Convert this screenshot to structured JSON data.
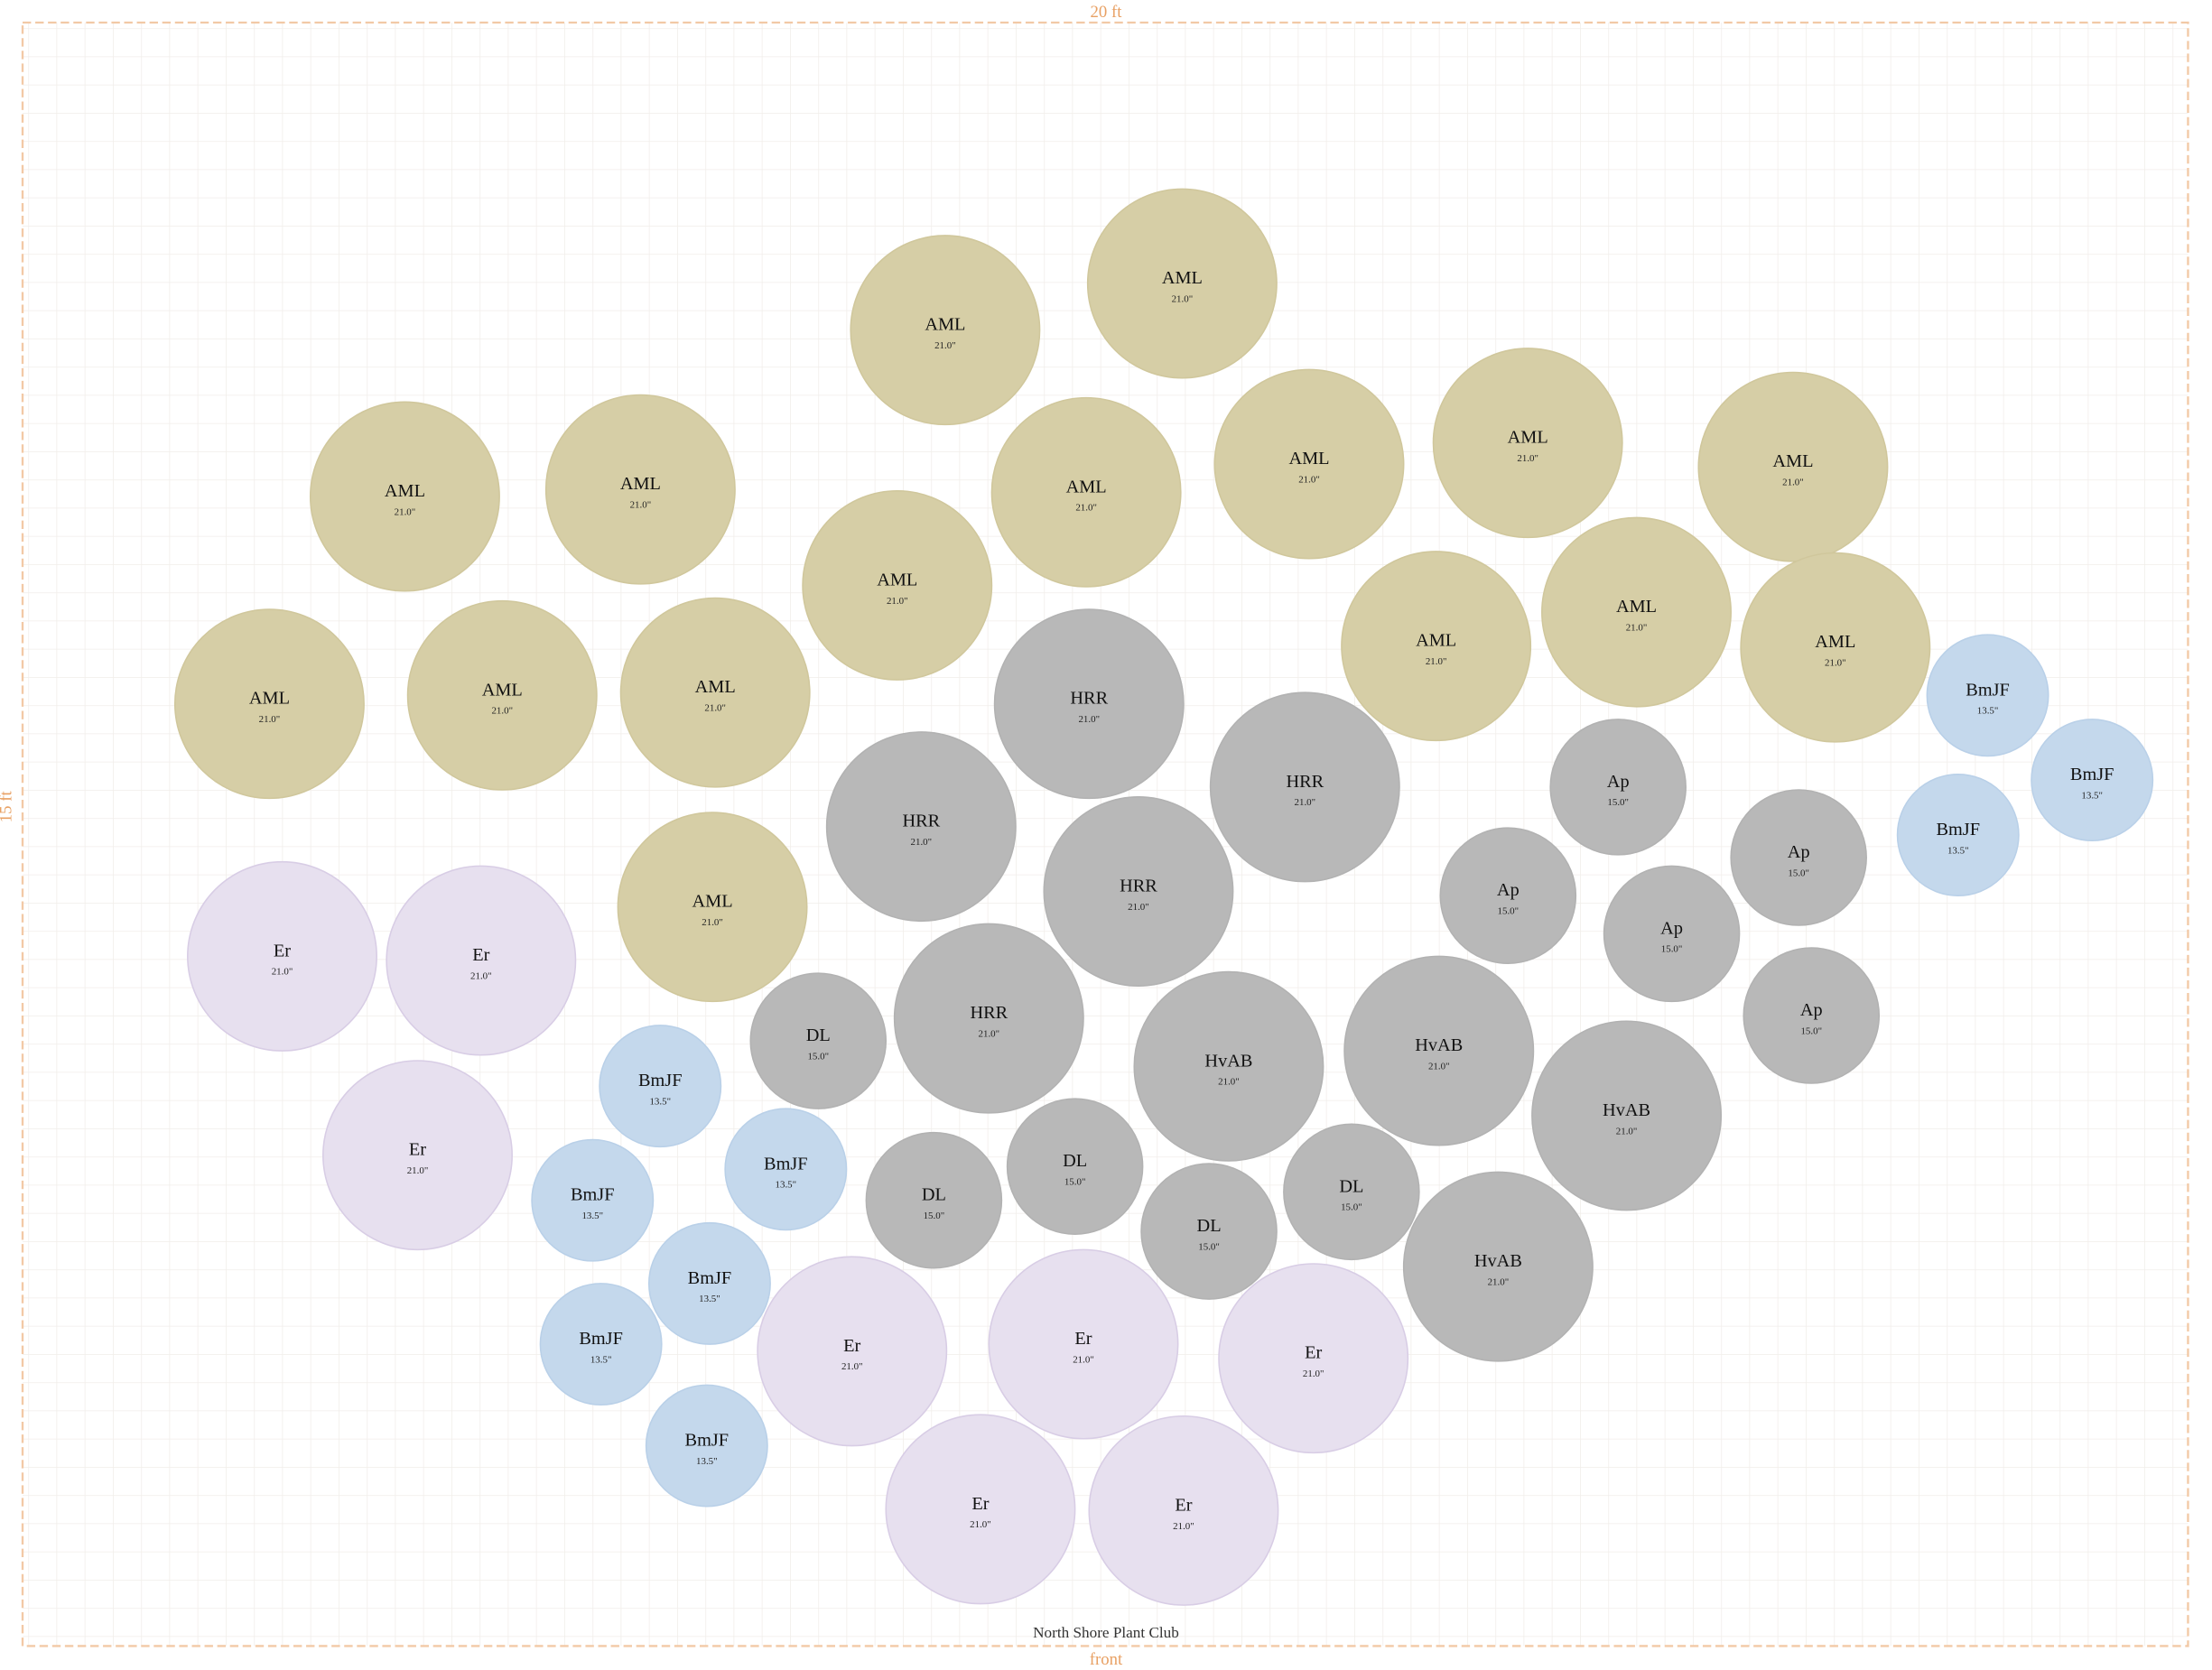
{
  "header": {
    "width_label": "20 ft",
    "depth_label": "15 ft",
    "front_label": "front",
    "club": "North Shore Plant Club"
  },
  "plants": [
    {
      "label": "AML",
      "size": "21.0\""
    },
    {
      "label": "AML",
      "size": "21.0\""
    },
    {
      "label": "AML",
      "size": "21.0\""
    },
    {
      "label": "AML",
      "size": "21.0\""
    },
    {
      "label": "AML",
      "size": "21.0\""
    },
    {
      "label": "AML",
      "size": "21.0\""
    },
    {
      "label": "AML",
      "size": "21.0\""
    },
    {
      "label": "AML",
      "size": "21.0\""
    },
    {
      "label": "AML",
      "size": "21.0\""
    },
    {
      "label": "AML",
      "size": "21.0\""
    },
    {
      "label": "AML",
      "size": "21.0\""
    },
    {
      "label": "AML",
      "size": "21.0\""
    },
    {
      "label": "AML",
      "size": "21.0\""
    },
    {
      "label": "AML",
      "size": "21.0\""
    },
    {
      "label": "AML",
      "size": "21.0\""
    },
    {
      "label": "AML",
      "size": "21.0\""
    },
    {
      "label": "HRR",
      "size": "21.0\""
    },
    {
      "label": "HRR",
      "size": "21.0\""
    },
    {
      "label": "HRR",
      "size": "21.0\""
    },
    {
      "label": "HRR",
      "size": "21.0\""
    },
    {
      "label": "HRR",
      "size": "21.0\""
    },
    {
      "label": "HvAB",
      "size": "21.0\""
    },
    {
      "label": "HvAB",
      "size": "21.0\""
    },
    {
      "label": "HvAB",
      "size": "21.0\""
    },
    {
      "label": "HvAB",
      "size": "21.0\""
    },
    {
      "label": "Ap",
      "size": "15.0\""
    },
    {
      "label": "Ap",
      "size": "15.0\""
    },
    {
      "label": "Ap",
      "size": "15.0\""
    },
    {
      "label": "Ap",
      "size": "15.0\""
    },
    {
      "label": "Ap",
      "size": "15.0\""
    },
    {
      "label": "DL",
      "size": "15.0\""
    },
    {
      "label": "DL",
      "size": "15.0\""
    },
    {
      "label": "DL",
      "size": "15.0\""
    },
    {
      "label": "DL",
      "size": "15.0\""
    },
    {
      "label": "DL",
      "size": "15.0\""
    },
    {
      "label": "BmJF",
      "size": "13.5\""
    },
    {
      "label": "BmJF",
      "size": "13.5\""
    },
    {
      "label": "BmJF",
      "size": "13.5\""
    },
    {
      "label": "BmJF",
      "size": "13.5\""
    },
    {
      "label": "BmJF",
      "size": "13.5\""
    },
    {
      "label": "BmJF",
      "size": "13.5\""
    },
    {
      "label": "BmJF",
      "size": "13.5\""
    },
    {
      "label": "BmJF",
      "size": "13.5\""
    },
    {
      "label": "BmJF",
      "size": "13.5\""
    },
    {
      "label": "Er",
      "size": "21.0\""
    },
    {
      "label": "Er",
      "size": "21.0\""
    },
    {
      "label": "Er",
      "size": "21.0\""
    },
    {
      "label": "Er",
      "size": "21.0\""
    },
    {
      "label": "Er",
      "size": "21.0\""
    },
    {
      "label": "Er",
      "size": "21.0\""
    },
    {
      "label": "Er",
      "size": "21.0\""
    },
    {
      "label": "Er",
      "size": "21.0\""
    }
  ]
}
